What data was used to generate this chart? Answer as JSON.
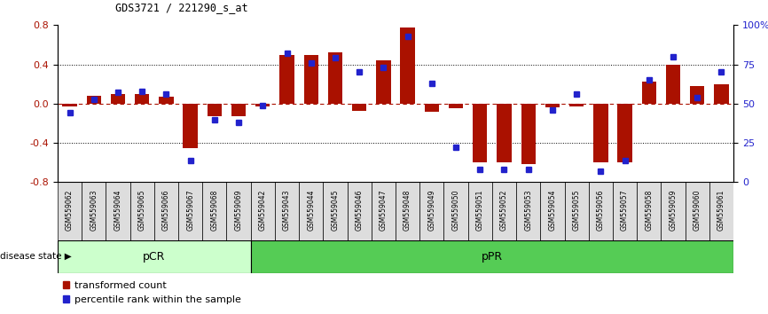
{
  "title": "GDS3721 / 221290_s_at",
  "samples": [
    "GSM559062",
    "GSM559063",
    "GSM559064",
    "GSM559065",
    "GSM559066",
    "GSM559067",
    "GSM559068",
    "GSM559069",
    "GSM559042",
    "GSM559043",
    "GSM559044",
    "GSM559045",
    "GSM559046",
    "GSM559047",
    "GSM559048",
    "GSM559049",
    "GSM559050",
    "GSM559051",
    "GSM559052",
    "GSM559053",
    "GSM559054",
    "GSM559055",
    "GSM559056",
    "GSM559057",
    "GSM559058",
    "GSM559059",
    "GSM559060",
    "GSM559061"
  ],
  "red_values": [
    -0.03,
    0.08,
    0.1,
    0.1,
    0.07,
    -0.45,
    -0.13,
    -0.13,
    -0.03,
    0.5,
    0.5,
    0.52,
    -0.07,
    0.44,
    0.78,
    -0.08,
    -0.05,
    -0.6,
    -0.6,
    -0.62,
    -0.04,
    -0.03,
    -0.6,
    -0.6,
    0.22,
    0.4,
    0.18,
    0.2
  ],
  "blue_values": [
    44,
    53,
    57,
    58,
    56,
    14,
    40,
    38,
    49,
    82,
    76,
    79,
    70,
    73,
    93,
    63,
    22,
    8,
    8,
    8,
    46,
    56,
    7,
    14,
    65,
    80,
    54,
    70
  ],
  "pCR_count": 8,
  "pCR_label": "pCR",
  "pPR_label": "pPR",
  "disease_state_label": "disease state",
  "red_color": "#aa1100",
  "blue_color": "#2222cc",
  "pCR_facecolor": "#ccffcc",
  "pPR_facecolor": "#55cc55",
  "ylim": [
    -0.8,
    0.8
  ],
  "yticks_left": [
    -0.8,
    -0.4,
    0.0,
    0.4,
    0.8
  ],
  "right_ytick_labels": [
    "0",
    "25",
    "50",
    "75",
    "100%"
  ],
  "right_ytick_vals": [
    0,
    25,
    50,
    75,
    100
  ],
  "bar_width": 0.6,
  "legend_red": "transformed count",
  "legend_blue": "percentile rank within the sample"
}
